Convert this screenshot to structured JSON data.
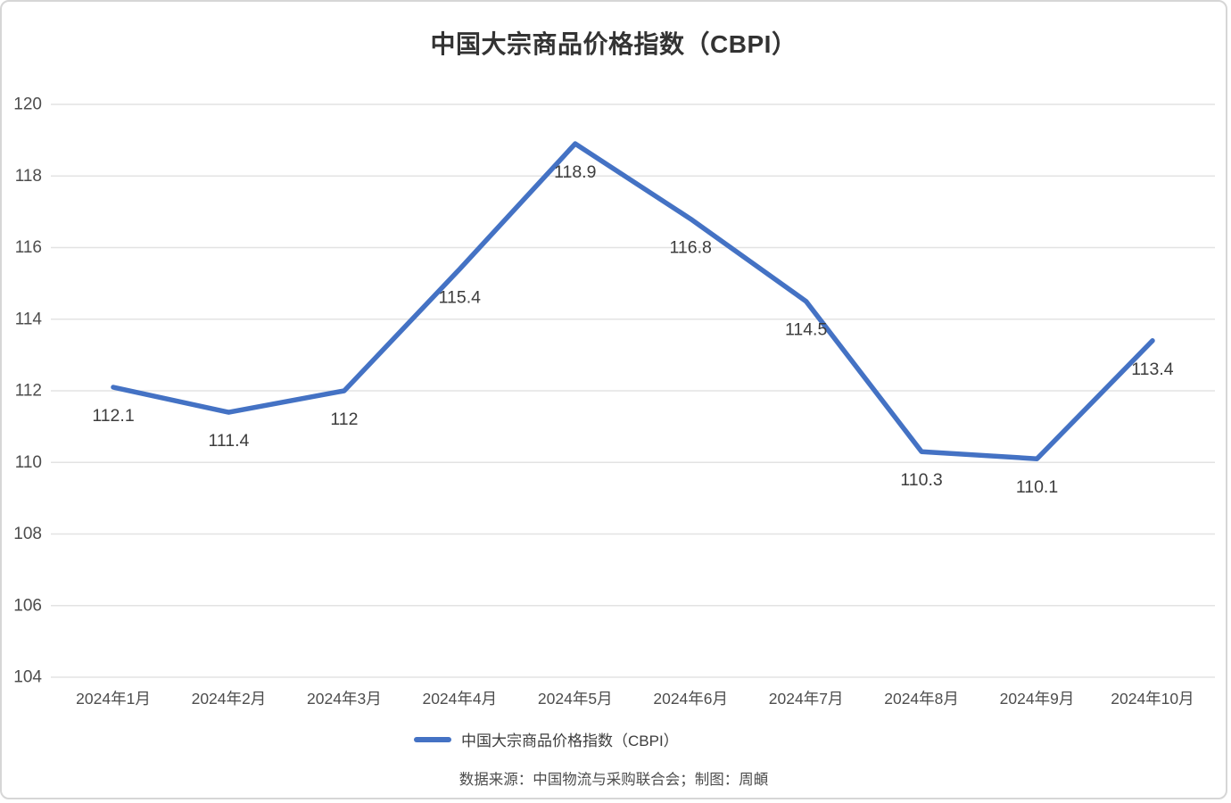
{
  "title": "中国大宗商品价格指数（CBPI）",
  "chart_data": {
    "type": "line",
    "title": "中国大宗商品价格指数（CBPI）",
    "categories": [
      "2024年1月",
      "2024年2月",
      "2024年3月",
      "2024年4月",
      "2024年5月",
      "2024年6月",
      "2024年7月",
      "2024年8月",
      "2024年9月",
      "2024年10月"
    ],
    "series": [
      {
        "name": "中国大宗商品价格指数（CBPI）",
        "values": [
          112.1,
          111.4,
          112,
          115.4,
          118.9,
          116.8,
          114.5,
          110.3,
          110.1,
          113.4
        ],
        "point_labels": [
          "112.1",
          "111.4",
          "112",
          "115.4",
          "118.9",
          "116.8",
          "114.5",
          "110.3",
          "110.1",
          "113.4"
        ],
        "color": "#4472c4"
      }
    ],
    "xlabel": "",
    "ylabel": "",
    "ylim": [
      104,
      120
    ],
    "yticks": [
      104,
      106,
      108,
      110,
      112,
      114,
      116,
      118,
      120
    ],
    "grid": true,
    "legend_position": "bottom"
  },
  "legend": {
    "label": "中国大宗商品价格指数（CBPI）"
  },
  "footer": {
    "source": "数据来源：中国物流与采购联合会；制图：周頔"
  },
  "colors": {
    "line": "#4472c4",
    "gridline": "#e3e3e3",
    "axis_text": "#4d4d4d",
    "data_label_text": "#3d3d3d",
    "title_text": "#333333",
    "card_border": "#d6d6d6",
    "background": "#ffffff"
  }
}
